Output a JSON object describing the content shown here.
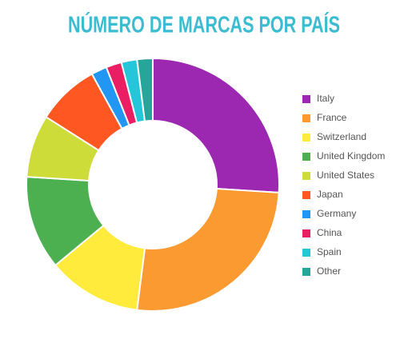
{
  "chart_data": {
    "type": "donut",
    "title": "NÚMERO DE MARCAS POR PAÍS",
    "categories": [
      "Italy",
      "France",
      "Switzerland",
      "United Kingdom",
      "United States",
      "Japan",
      "Germany",
      "China",
      "Spain",
      "Other"
    ],
    "values": [
      26,
      26,
      12,
      12,
      8,
      8,
      2,
      2,
      2,
      2
    ],
    "colors": [
      "#9c27b0",
      "#fb9a30",
      "#ffeb3b",
      "#4caf50",
      "#cddc39",
      "#ff5722",
      "#2196f3",
      "#e91e63",
      "#26c6da",
      "#26a69a"
    ],
    "legend": "right"
  }
}
